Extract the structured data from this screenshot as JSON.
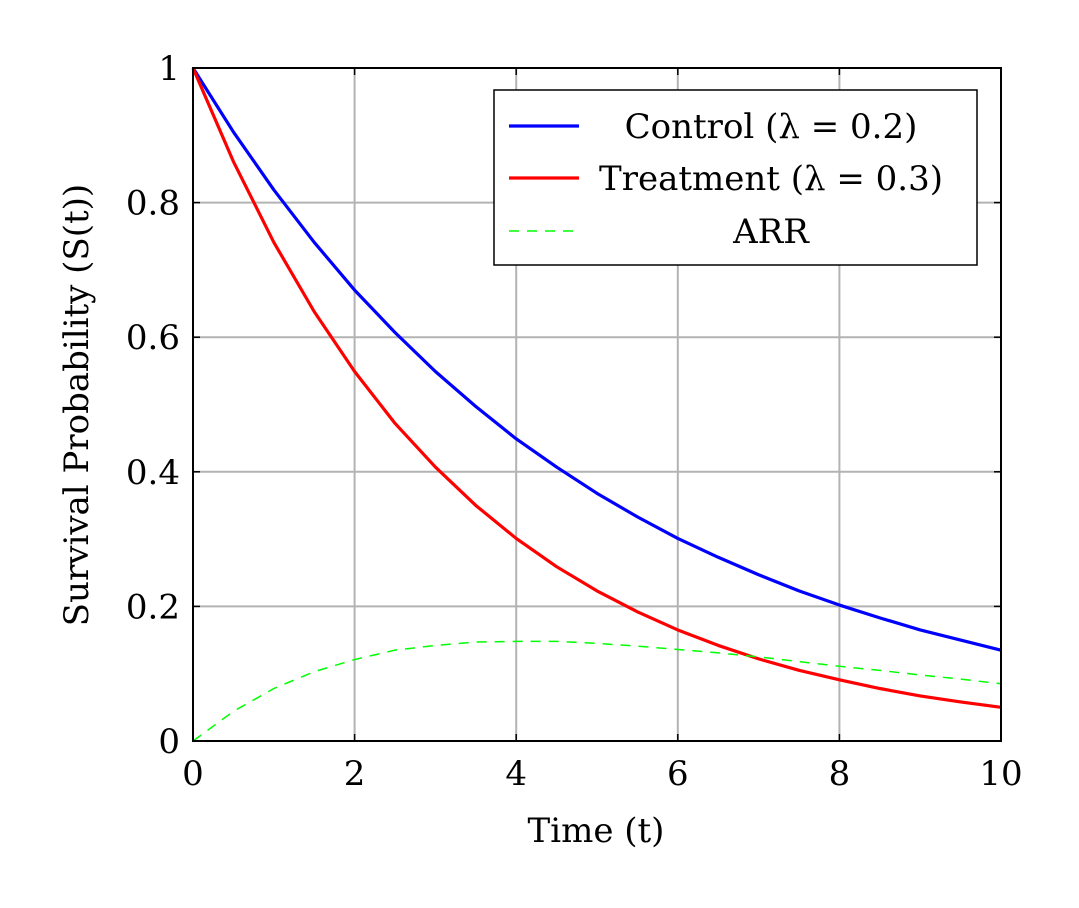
{
  "chart_data": {
    "type": "line",
    "title": "",
    "xlabel": "Time (t)",
    "ylabel": "Survival Probability (S(t))",
    "xlim": [
      0,
      10
    ],
    "ylim": [
      0,
      1
    ],
    "xticks": [
      0,
      2,
      4,
      6,
      8,
      10
    ],
    "yticks": [
      0,
      0.2,
      0.4,
      0.6,
      0.8,
      1
    ],
    "grid": true,
    "legend_position": "top-right",
    "x": [
      0,
      0.5,
      1,
      1.5,
      2,
      2.5,
      3,
      3.5,
      4,
      4.5,
      5,
      5.5,
      6,
      6.5,
      7,
      7.5,
      8,
      8.5,
      9,
      9.5,
      10
    ],
    "series": [
      {
        "name": "Control (λ = 0.2)",
        "color": "#0000ff",
        "style": "solid",
        "values": [
          1.0,
          0.905,
          0.819,
          0.741,
          0.67,
          0.607,
          0.549,
          0.497,
          0.449,
          0.407,
          0.368,
          0.333,
          0.301,
          0.273,
          0.247,
          0.223,
          0.202,
          0.183,
          0.165,
          0.15,
          0.135
        ]
      },
      {
        "name": "Treatment (λ = 0.3)",
        "color": "#ff0000",
        "style": "solid",
        "values": [
          1.0,
          0.861,
          0.741,
          0.638,
          0.549,
          0.472,
          0.407,
          0.35,
          0.301,
          0.259,
          0.223,
          0.192,
          0.165,
          0.142,
          0.122,
          0.105,
          0.091,
          0.078,
          0.067,
          0.058,
          0.05
        ]
      },
      {
        "name": "ARR",
        "color": "#00ff00",
        "style": "dashed",
        "values": [
          0.0,
          0.044,
          0.078,
          0.103,
          0.121,
          0.135,
          0.142,
          0.147,
          0.148,
          0.148,
          0.145,
          0.141,
          0.136,
          0.131,
          0.125,
          0.118,
          0.111,
          0.105,
          0.098,
          0.092,
          0.085
        ]
      }
    ]
  }
}
